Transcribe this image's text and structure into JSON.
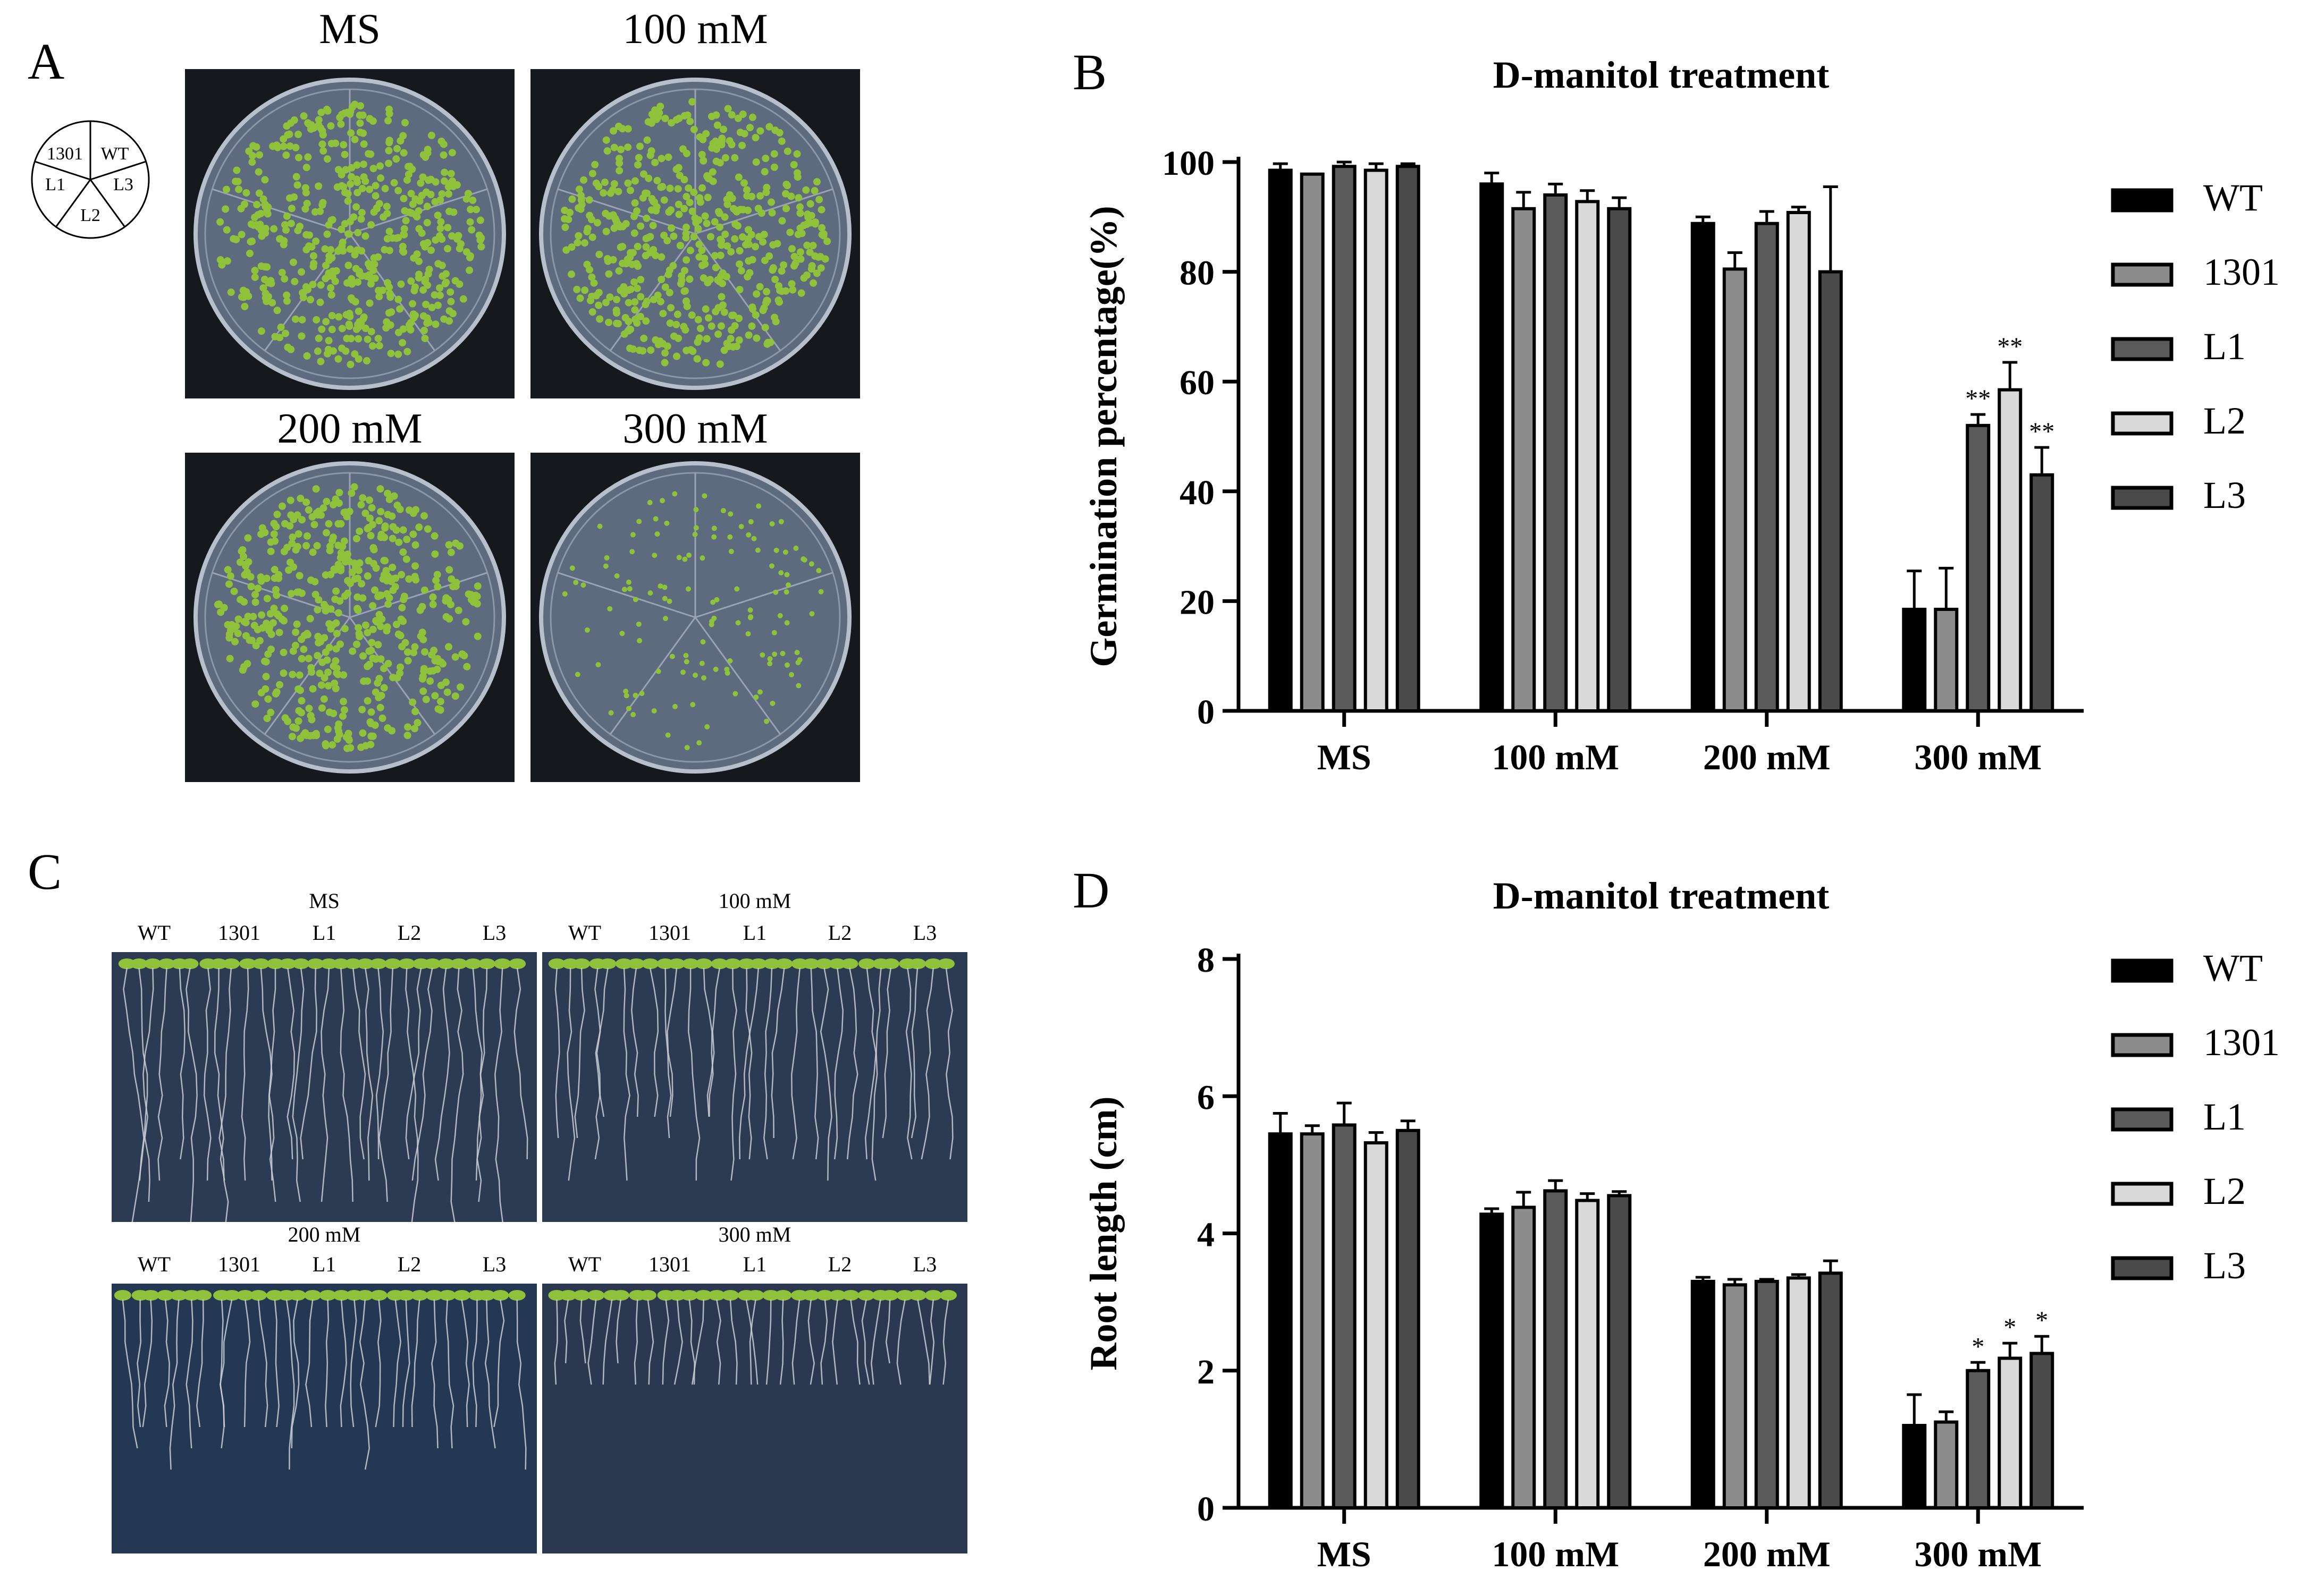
{
  "panels": {
    "A": {
      "letter": "A",
      "diagram": [
        "1301",
        "WT",
        "L1",
        "L3",
        "L2"
      ],
      "plates": [
        {
          "label": "MS",
          "density": "high"
        },
        {
          "label": "100 mM",
          "density": "high"
        },
        {
          "label": "200 mM",
          "density": "high"
        },
        {
          "label": "300 mM",
          "density": "low"
        }
      ]
    },
    "B": {
      "letter": "B"
    },
    "C": {
      "letter": "C",
      "genotypes": [
        "WT",
        "1301",
        "L1",
        "L2",
        "L3"
      ],
      "plates": [
        {
          "label": "MS"
        },
        {
          "label": "100 mM"
        },
        {
          "label": "200 mM"
        },
        {
          "label": "300 mM"
        }
      ]
    },
    "D": {
      "letter": "D"
    }
  },
  "colors": {
    "WT": "#000000",
    "1301": "#8c8c8c",
    "L1": "#5a5a5a",
    "L2": "#d9d9d9",
    "L3": "#4a4a4a",
    "seedling": "#8fc23a",
    "plate_bg": "#5e6a7d",
    "agar_blue": "#2e3f5c"
  },
  "chart_data": [
    {
      "type": "bar",
      "panel": "B",
      "title": "D-manitol treatment",
      "ylabel": "Germination percentage(%)",
      "xlabel": "",
      "categories": [
        "MS",
        "100 mM",
        "200 mM",
        "300 mM"
      ],
      "ylim": [
        0,
        100
      ],
      "yticks": [
        0,
        20,
        40,
        60,
        80,
        100
      ],
      "legend_position": "right",
      "series": [
        {
          "name": "WT",
          "values": [
            98.5,
            96,
            88.8,
            18.5
          ],
          "errors": [
            1.2,
            2,
            1.2,
            7
          ],
          "sig": [
            "",
            "",
            "",
            ""
          ]
        },
        {
          "name": "1301",
          "values": [
            97.8,
            91.5,
            80.5,
            18.5
          ],
          "errors": [
            0,
            3,
            3,
            7.5
          ],
          "sig": [
            "",
            "",
            "",
            ""
          ]
        },
        {
          "name": "L1",
          "values": [
            99.2,
            94,
            88.8,
            52
          ],
          "errors": [
            0.8,
            2,
            2.2,
            2
          ],
          "sig": [
            "",
            "",
            "",
            "**"
          ]
        },
        {
          "name": "L2",
          "values": [
            98.5,
            92.8,
            90.8,
            58.5
          ],
          "errors": [
            1.2,
            2,
            1,
            5
          ],
          "sig": [
            "",
            "",
            "",
            "**"
          ]
        },
        {
          "name": "L3",
          "values": [
            99.2,
            91.5,
            80,
            43
          ],
          "errors": [
            0.5,
            2,
            15.5,
            5
          ],
          "sig": [
            "",
            "",
            "",
            "**"
          ]
        }
      ]
    },
    {
      "type": "bar",
      "panel": "D",
      "title": "D-manitol treatment",
      "ylabel": "Root length (cm)",
      "xlabel": "",
      "categories": [
        "MS",
        "100 mM",
        "200 mM",
        "300 mM"
      ],
      "ylim": [
        0,
        8
      ],
      "yticks": [
        0,
        2,
        4,
        6,
        8
      ],
      "legend_position": "right",
      "series": [
        {
          "name": "WT",
          "values": [
            5.45,
            4.28,
            3.3,
            1.2
          ],
          "errors": [
            0.3,
            0.08,
            0.06,
            0.45
          ],
          "sig": [
            "",
            "",
            "",
            ""
          ]
        },
        {
          "name": "1301",
          "values": [
            5.45,
            4.38,
            3.25,
            1.25
          ],
          "errors": [
            0.12,
            0.22,
            0.08,
            0.15
          ],
          "sig": [
            "",
            "",
            "",
            ""
          ]
        },
        {
          "name": "L1",
          "values": [
            5.58,
            4.62,
            3.3,
            2.0
          ],
          "errors": [
            0.32,
            0.15,
            0.03,
            0.12
          ],
          "sig": [
            "",
            "",
            "",
            "*"
          ]
        },
        {
          "name": "L2",
          "values": [
            5.32,
            4.48,
            3.35,
            2.18
          ],
          "errors": [
            0.15,
            0.1,
            0.05,
            0.22
          ],
          "sig": [
            "",
            "",
            "",
            "*"
          ]
        },
        {
          "name": "L3",
          "values": [
            5.5,
            4.55,
            3.42,
            2.25
          ],
          "errors": [
            0.14,
            0.06,
            0.18,
            0.25
          ],
          "sig": [
            "",
            "",
            "",
            "*"
          ]
        }
      ]
    }
  ]
}
